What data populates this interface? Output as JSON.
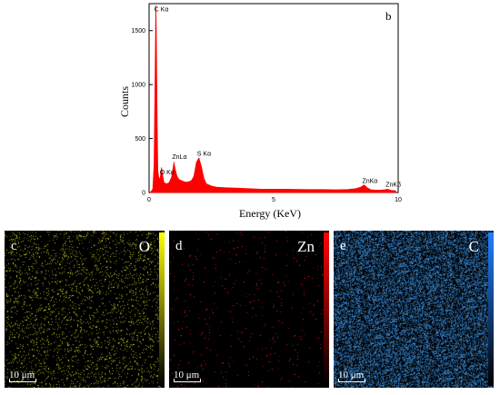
{
  "chart_data": {
    "type": "line",
    "panel_label": "b",
    "xlabel": "Energy (KeV)",
    "ylabel": "Counts",
    "xlim": [
      0,
      10
    ],
    "ylim": [
      0,
      1750
    ],
    "xticks": [
      0,
      5,
      10
    ],
    "yticks": [
      0,
      500,
      1000,
      1500
    ],
    "grid": false,
    "series": [
      {
        "color": "#ff0000",
        "x": [
          0.05,
          0.15,
          0.2,
          0.25,
          0.27,
          0.29,
          0.32,
          0.35,
          0.4,
          0.45,
          0.5,
          0.55,
          0.6,
          0.7,
          0.8,
          0.9,
          1.0,
          1.01,
          1.05,
          1.12,
          1.2,
          1.3,
          1.4,
          1.5,
          1.6,
          1.7,
          1.8,
          1.9,
          2.0,
          2.1,
          2.2,
          2.3,
          2.4,
          2.5,
          2.7,
          3.0,
          3.5,
          4.0,
          4.5,
          5.0,
          5.5,
          6.0,
          6.5,
          7.0,
          7.5,
          8.0,
          8.3,
          8.5,
          8.63,
          8.75,
          8.9,
          9.1,
          9.3,
          9.45,
          9.57,
          9.7,
          9.9
        ],
        "y": [
          0,
          30,
          250,
          1200,
          1730,
          1500,
          700,
          200,
          120,
          140,
          230,
          150,
          90,
          80,
          90,
          140,
          280,
          260,
          210,
          150,
          120,
          110,
          100,
          95,
          100,
          110,
          150,
          280,
          320,
          240,
          130,
          80,
          70,
          60,
          50,
          45,
          40,
          35,
          30,
          30,
          30,
          28,
          27,
          27,
          25,
          28,
          35,
          50,
          70,
          45,
          25,
          22,
          22,
          25,
          30,
          20,
          15
        ]
      }
    ],
    "annotations": [
      {
        "text": "C Kα",
        "x": 0.28,
        "y": 1680
      },
      {
        "text": "O Kα",
        "x": 0.5,
        "y": 170
      },
      {
        "text": "ZnLα",
        "x": 1.0,
        "y": 310
      },
      {
        "text": "S Kα",
        "x": 2.0,
        "y": 340
      },
      {
        "text": "ZnKα",
        "x": 8.63,
        "y": 90
      },
      {
        "text": "ZnKβ",
        "x": 9.57,
        "y": 55
      }
    ]
  },
  "maps": [
    {
      "letter": "c",
      "element": "O",
      "dot_color": "#d8d820",
      "bar_color": "#ffff00",
      "scale": "10 μm"
    },
    {
      "letter": "d",
      "element": "Zn",
      "dot_color": "#ff2020",
      "bar_color": "#ff0000",
      "scale": "10 μm"
    },
    {
      "letter": "e",
      "element": "C",
      "dot_color": "#3a8fe0",
      "bar_color": "#2080ff",
      "scale": "10 μm"
    }
  ]
}
